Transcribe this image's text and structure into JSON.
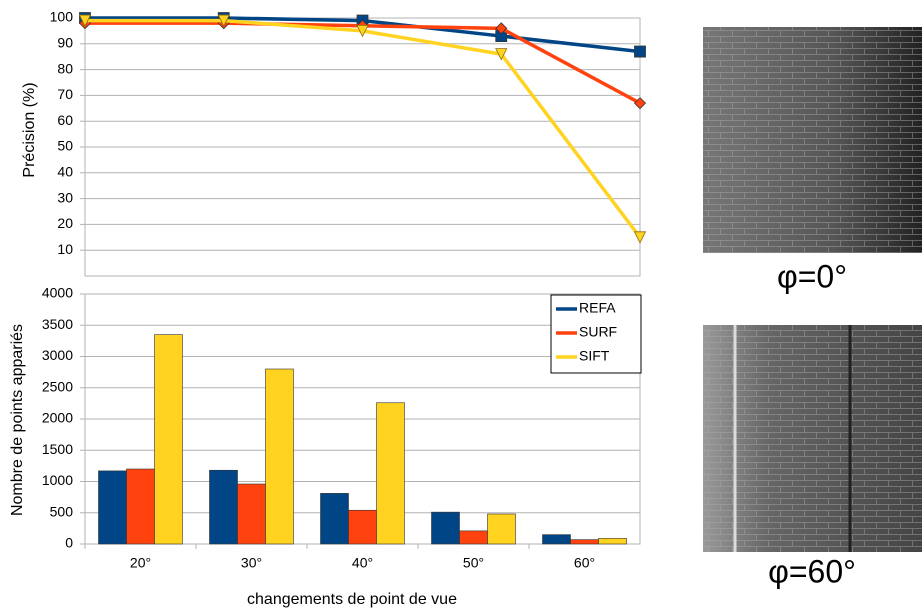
{
  "chart_data": [
    {
      "type": "line",
      "ylabel": "Précision (%)",
      "ylim": [
        0,
        100
      ],
      "yticks": [
        10,
        20,
        30,
        40,
        50,
        60,
        70,
        80,
        90,
        100
      ],
      "grid": true,
      "legend": "upper right",
      "series": [
        {
          "name": "REFA",
          "color": "#004586",
          "marker": "square",
          "values": [
            100,
            100,
            99,
            93,
            87
          ]
        },
        {
          "name": "SURF",
          "color": "#ff420e",
          "marker": "diamond",
          "values": [
            98,
            98,
            97,
            96,
            67
          ]
        },
        {
          "name": "SIFT",
          "color": "#ffd320",
          "marker": "triangle-down",
          "values": [
            99,
            99,
            95,
            86,
            15
          ]
        }
      ]
    },
    {
      "type": "bar",
      "ylabel": "Nombre de points appariés",
      "xlabel": "changements de point de vue",
      "categories": [
        "20°",
        "30°",
        "40°",
        "50°",
        "60°"
      ],
      "ylim": [
        0,
        4000
      ],
      "yticks": [
        0,
        500,
        1000,
        1500,
        2000,
        2500,
        3000,
        3500,
        4000
      ],
      "grid": true,
      "series": [
        {
          "color": "#004586",
          "values": [
            1170,
            1180,
            810,
            510,
            150
          ]
        },
        {
          "color": "#ff420e",
          "values": [
            1200,
            960,
            540,
            210,
            70
          ]
        },
        {
          "color": "#ffd320",
          "values": [
            3350,
            2800,
            2260,
            480,
            90
          ]
        }
      ]
    }
  ],
  "images": [
    {
      "caption": "φ=0°"
    },
    {
      "caption": "φ=60°"
    }
  ]
}
